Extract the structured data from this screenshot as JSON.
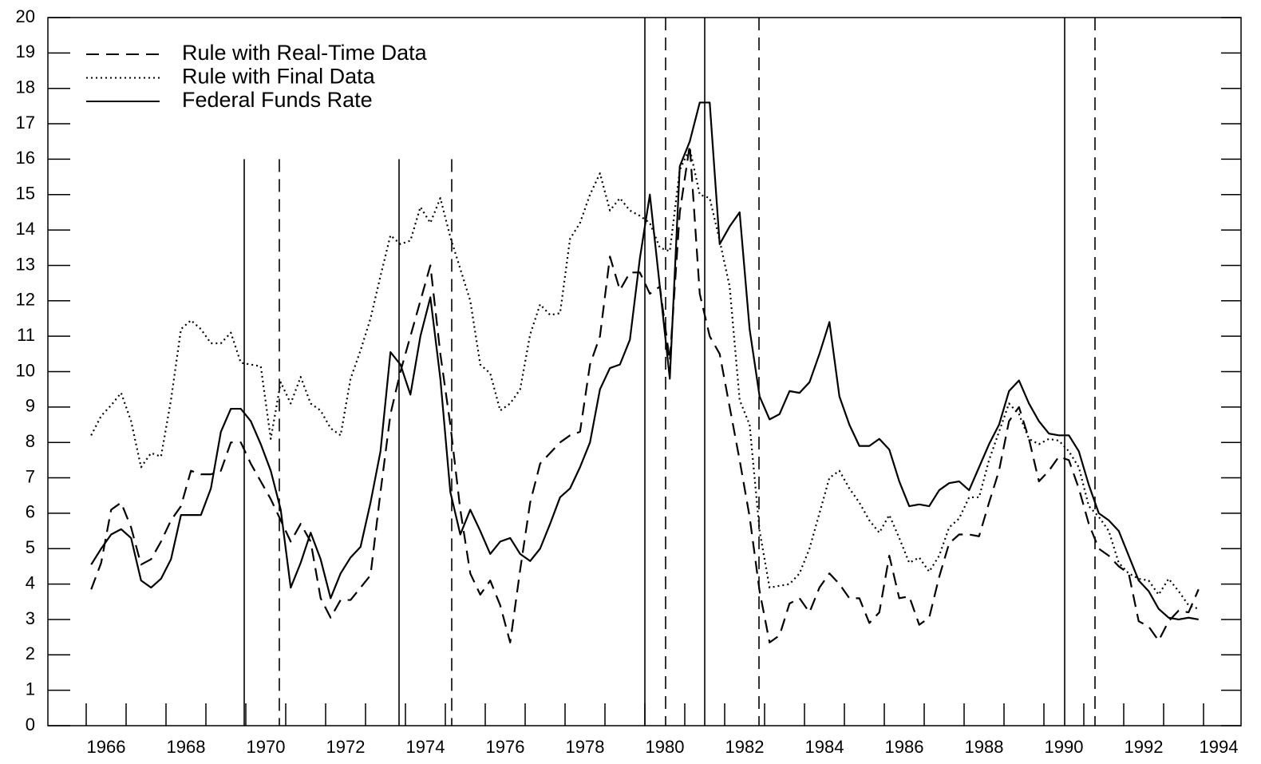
{
  "chart_data": {
    "type": "line",
    "x_start": 1966.125,
    "x_step": 0.25,
    "xlim": [
      1965.04,
      1994.94
    ],
    "ylim": [
      0,
      20
    ],
    "yticks": [
      0,
      1,
      2,
      3,
      4,
      5,
      6,
      7,
      8,
      9,
      10,
      11,
      12,
      13,
      14,
      15,
      16,
      17,
      18,
      19,
      20
    ],
    "xticks": [
      1966,
      {
        "value": 1967,
        "label": null
      },
      1968,
      {
        "value": 1969,
        "label": null
      },
      1970,
      {
        "value": 1971,
        "label": null
      },
      1972,
      {
        "value": 1973,
        "label": null
      },
      1974,
      {
        "value": 1975,
        "label": null
      },
      1976,
      {
        "value": 1977,
        "label": null
      },
      1978,
      {
        "value": 1979,
        "label": null
      },
      1980,
      {
        "value": 1981,
        "label": null
      },
      1982,
      {
        "value": 1983,
        "label": null
      },
      1984,
      {
        "value": 1985,
        "label": null
      },
      1986,
      {
        "value": 1987,
        "label": null
      },
      1988,
      {
        "value": 1989,
        "label": null
      },
      1990,
      {
        "value": 1991,
        "label": null
      },
      1992,
      {
        "value": 1993,
        "label": null
      },
      1994
    ],
    "legend": "upper left",
    "series": [
      {
        "name": "Rule with Real-Time Data",
        "color": "#000000",
        "style": "dashed",
        "values": [
          3.85,
          4.6,
          6.1,
          6.3,
          5.6,
          4.55,
          4.7,
          5.2,
          5.8,
          6.2,
          7.2,
          7.1,
          7.1,
          7.2,
          8.0,
          8.0,
          7.4,
          6.9,
          6.4,
          5.8,
          5.2,
          5.7,
          5.2,
          3.6,
          3.05,
          3.55,
          3.55,
          3.9,
          4.25,
          6.6,
          8.8,
          10.0,
          11.0,
          12.0,
          13.0,
          10.5,
          8.5,
          6.1,
          4.3,
          3.7,
          4.1,
          3.4,
          2.35,
          4.4,
          6.3,
          7.4,
          7.7,
          8.0,
          8.2,
          8.3,
          10.2,
          11.0,
          13.25,
          12.3,
          12.8,
          12.8,
          12.2,
          12.4,
          10.3,
          14.5,
          16.4,
          12.2,
          11.0,
          10.5,
          9.0,
          7.5,
          5.9,
          3.8,
          2.35,
          2.55,
          3.45,
          3.6,
          3.2,
          3.9,
          4.3,
          4.0,
          3.6,
          3.6,
          2.9,
          3.2,
          4.8,
          3.6,
          3.65,
          2.85,
          3.05,
          4.2,
          5.15,
          5.4,
          5.4,
          5.35,
          6.3,
          7.2,
          8.6,
          9.0,
          8.1,
          6.9,
          7.2,
          7.6,
          7.5,
          6.7,
          5.7,
          5.0,
          4.8,
          4.5,
          4.3,
          2.95,
          2.8,
          2.4,
          2.95,
          3.25,
          3.2,
          3.85
        ]
      },
      {
        "name": "Rule with Final Data",
        "color": "#000000",
        "style": "dotted",
        "values": [
          8.2,
          8.75,
          9.05,
          9.4,
          8.6,
          7.3,
          7.7,
          7.6,
          9.2,
          11.2,
          11.45,
          11.2,
          10.8,
          10.8,
          11.1,
          10.25,
          10.2,
          10.15,
          8.1,
          9.7,
          9.1,
          9.85,
          9.1,
          8.9,
          8.4,
          8.2,
          9.8,
          10.6,
          11.5,
          12.7,
          13.85,
          13.6,
          13.7,
          14.65,
          14.2,
          14.9,
          13.8,
          12.9,
          12.0,
          10.2,
          9.95,
          8.9,
          9.1,
          9.5,
          11.05,
          11.9,
          11.6,
          11.65,
          13.75,
          14.2,
          15.0,
          15.6,
          14.55,
          14.9,
          14.55,
          14.4,
          14.2,
          13.5,
          13.4,
          15.7,
          16.3,
          15.0,
          14.9,
          13.7,
          12.4,
          9.2,
          8.5,
          5.5,
          3.9,
          3.95,
          4.0,
          4.3,
          5.0,
          6.0,
          7.0,
          7.2,
          6.7,
          6.3,
          5.8,
          5.45,
          5.95,
          5.3,
          4.6,
          4.75,
          4.35,
          4.8,
          5.6,
          5.85,
          6.45,
          6.45,
          7.5,
          8.3,
          9.1,
          8.8,
          8.1,
          7.95,
          8.1,
          8.05,
          7.75,
          7.3,
          6.2,
          5.9,
          5.5,
          4.6,
          4.3,
          4.15,
          4.1,
          3.7,
          4.15,
          3.8,
          3.4,
          3.3
        ]
      },
      {
        "name": "Federal Funds Rate",
        "color": "#000000",
        "style": "solid",
        "values": [
          4.55,
          5.0,
          5.4,
          5.55,
          5.3,
          4.1,
          3.9,
          4.15,
          4.7,
          5.95,
          5.95,
          5.95,
          6.7,
          8.3,
          8.95,
          8.95,
          8.6,
          7.95,
          7.2,
          6.1,
          3.9,
          4.6,
          5.45,
          4.7,
          3.6,
          4.3,
          4.75,
          5.05,
          6.3,
          7.75,
          10.55,
          10.2,
          9.35,
          11.0,
          12.1,
          9.8,
          6.6,
          5.4,
          6.1,
          5.5,
          4.85,
          5.2,
          5.3,
          4.85,
          4.65,
          5.0,
          5.7,
          6.45,
          6.7,
          7.3,
          8.0,
          9.5,
          10.1,
          10.2,
          10.9,
          13.2,
          15.0,
          12.4,
          9.8,
          15.8,
          16.5,
          17.6,
          17.6,
          13.6,
          14.1,
          14.5,
          11.2,
          9.3,
          8.65,
          8.8,
          9.45,
          9.4,
          9.7,
          10.5,
          11.4,
          9.3,
          8.5,
          7.9,
          7.9,
          8.1,
          7.8,
          6.9,
          6.2,
          6.25,
          6.2,
          6.65,
          6.85,
          6.9,
          6.65,
          7.3,
          7.95,
          8.5,
          9.45,
          9.75,
          9.1,
          8.6,
          8.25,
          8.2,
          8.2,
          7.75,
          6.8,
          6.0,
          5.8,
          5.5,
          4.8,
          4.1,
          3.8,
          3.3,
          3.05,
          3.0,
          3.05,
          3.0
        ]
      }
    ],
    "vlines": [
      {
        "x": 1969.96,
        "top": 16,
        "style": "solid"
      },
      {
        "x": 1970.84,
        "top": 16,
        "style": "dashed"
      },
      {
        "x": 1973.84,
        "top": 16,
        "style": "solid"
      },
      {
        "x": 1975.16,
        "top": 16,
        "style": "dashed"
      },
      {
        "x": 1980.0,
        "top": 20,
        "style": "solid"
      },
      {
        "x": 1980.52,
        "top": 20,
        "style": "dashed"
      },
      {
        "x": 1981.5,
        "top": 20,
        "style": "solid"
      },
      {
        "x": 1982.86,
        "top": 20,
        "style": "dashed"
      },
      {
        "x": 1990.52,
        "top": 20,
        "style": "solid"
      },
      {
        "x": 1991.28,
        "top": 20,
        "style": "dashed"
      }
    ]
  }
}
